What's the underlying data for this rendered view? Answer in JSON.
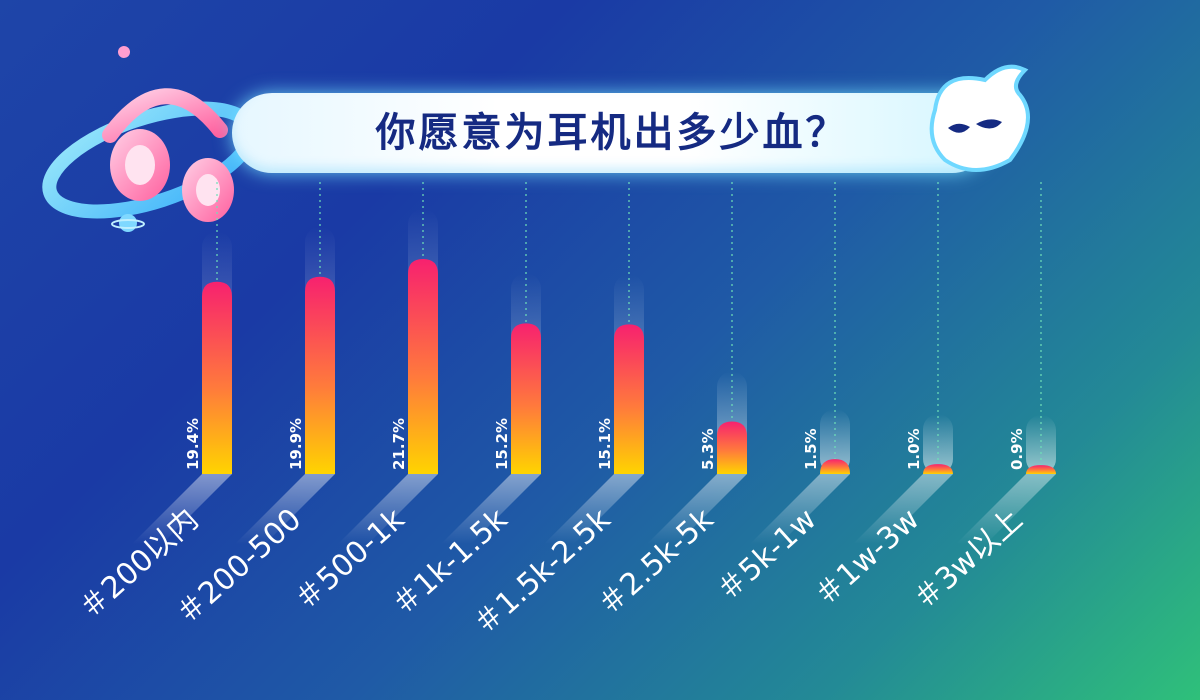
{
  "chart_data": {
    "type": "bar",
    "title": "你愿意为耳机出多少血？",
    "categories": [
      "＃200以内",
      "＃200-500",
      "＃500-1k",
      "＃1k-1.5k",
      "＃1.5k-2.5k",
      "＃2.5k-5k",
      "＃5k-1w",
      "＃1w-3w",
      "＃3w以上"
    ],
    "values": [
      19.4,
      19.9,
      21.7,
      15.2,
      15.1,
      5.3,
      1.5,
      1.0,
      0.9
    ],
    "value_labels": [
      "19.4%",
      "19.9%",
      "21.7%",
      "15.2%",
      "15.1%",
      "5.3%",
      "1.5%",
      "1.0%",
      "0.9%"
    ],
    "unit": "%",
    "ylim": [
      0,
      22
    ],
    "grid": false,
    "legend": "none"
  },
  "colors": {
    "background_start": "#1a3aa5",
    "background_end": "#2fc07a",
    "bar_top": "#f7216f",
    "bar_bottom": "#ffd400",
    "title_text": "#152a82",
    "label_text": "#ffffff"
  }
}
